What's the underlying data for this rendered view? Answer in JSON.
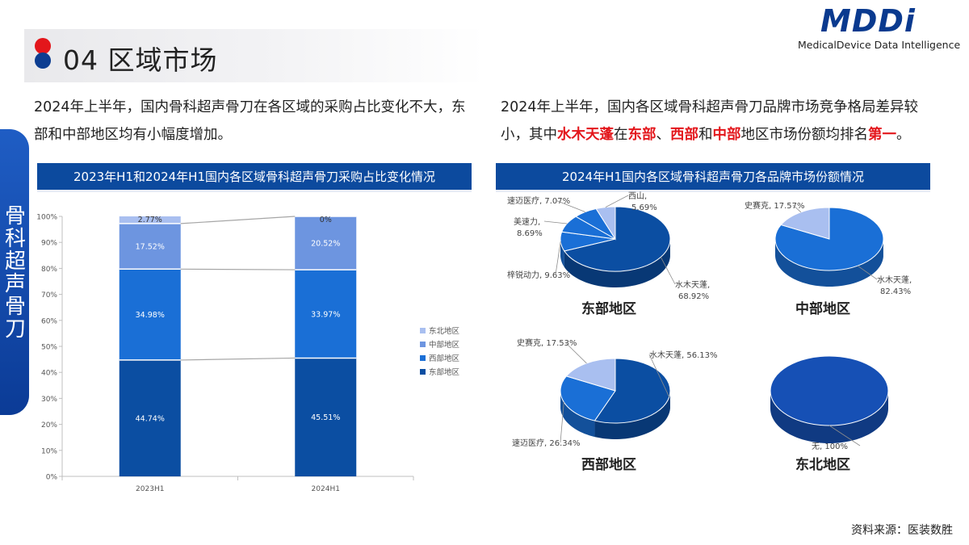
{
  "header": {
    "title": "04 区域市场",
    "logo": "MDDi",
    "logo_subtitle": "MedicalDevice Data Intelligence"
  },
  "side_tab": {
    "label": "骨科超声骨刀"
  },
  "left_text": {
    "line": "2024年上半年，国内骨科超声骨刀在各区域的采购占比变化不大，东部和中部地区均有小幅度增加。"
  },
  "right_text": {
    "p1": "2024年上半年，国内各区域骨科超声骨刀品牌市场竞争格局差异较小，其中",
    "h1": "水木天蓬",
    "p2": "在",
    "h2": "东部",
    "p3": "、",
    "h3": "西部",
    "p4": "和",
    "h4": "中部",
    "p5": "地区市场份额均排名",
    "h5": "第一",
    "p6": "。"
  },
  "colors": {
    "east": "#0b4ea2",
    "west": "#1a6fd6",
    "central": "#6d95e0",
    "northeast": "#a9bff0",
    "title_bar": "#0c4a9e",
    "highlight": "#e3161b"
  },
  "chart_data": [
    {
      "type": "bar",
      "stacked": true,
      "title": "2023年H1和2024年H1国内各区域骨科超声骨刀采购占比变化情况",
      "categories": [
        "2023H1",
        "2024H1"
      ],
      "y_ticks": [
        "0%",
        "10%",
        "20%",
        "30%",
        "40%",
        "50%",
        "60%",
        "70%",
        "80%",
        "90%",
        "100%"
      ],
      "ylim": [
        0,
        100
      ],
      "legend_position": "right",
      "series": [
        {
          "name": "东部地区",
          "values": [
            44.74,
            45.51
          ],
          "labels": [
            "44.74%",
            "45.51%"
          ]
        },
        {
          "name": "西部地区",
          "values": [
            34.98,
            33.97
          ],
          "labels": [
            "34.98%",
            "33.97%"
          ]
        },
        {
          "name": "中部地区",
          "values": [
            17.52,
            20.52
          ],
          "labels": [
            "17.52%",
            "20.52%"
          ]
        },
        {
          "name": "东北地区",
          "values": [
            2.77,
            0
          ],
          "labels": [
            "2.77%",
            "0%"
          ]
        }
      ]
    },
    {
      "type": "pie",
      "title": "2024年H1国内各区域骨科超声骨刀各品牌市场份额情况",
      "pies": [
        {
          "name": "东部地区",
          "slices": [
            {
              "label": "水木天蓬",
              "value": 68.92,
              "text": "水木天蓬, 68.92%"
            },
            {
              "label": "梓锐动力",
              "value": 9.63,
              "text": "梓锐动力, 9.63%"
            },
            {
              "label": "美速力",
              "value": 8.69,
              "text": "美速力, 8.69%"
            },
            {
              "label": "速迈医疗",
              "value": 7.07,
              "text": "速迈医疗, 7.07%"
            },
            {
              "label": "西山",
              "value": 5.69,
              "text": "西山, 5.69%"
            }
          ]
        },
        {
          "name": "中部地区",
          "slices": [
            {
              "label": "水木天蓬",
              "value": 82.43,
              "text": "水木天蓬, 82.43%"
            },
            {
              "label": "史赛克",
              "value": 17.57,
              "text": "史赛克, 17.57%"
            }
          ]
        },
        {
          "name": "西部地区",
          "slices": [
            {
              "label": "水木天蓬",
              "value": 56.13,
              "text": "水木天蓬, 56.13%"
            },
            {
              "label": "速迈医疗",
              "value": 26.34,
              "text": "速迈医疗, 26.34%"
            },
            {
              "label": "史赛克",
              "value": 17.53,
              "text": "史赛克, 17.53%"
            }
          ]
        },
        {
          "name": "东北地区",
          "slices": [
            {
              "label": "无",
              "value": 100,
              "text": "无, 100%"
            }
          ]
        }
      ]
    }
  ],
  "source": "资料来源：医装数胜"
}
